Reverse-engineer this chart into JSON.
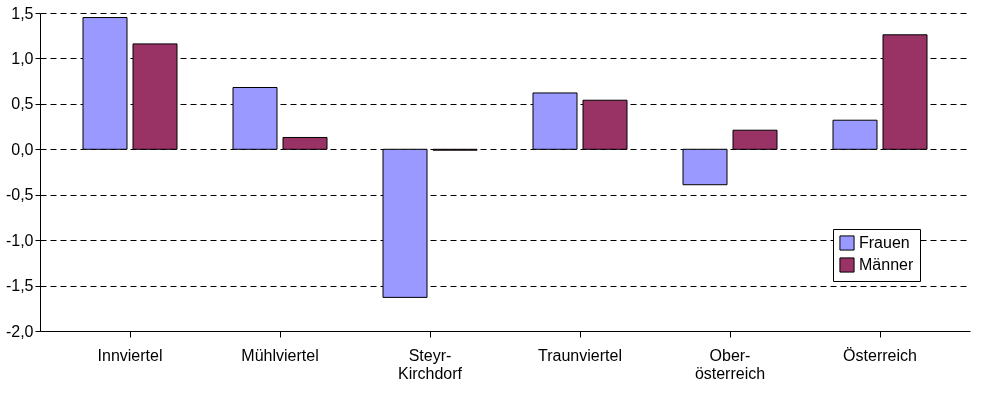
{
  "chart_data": {
    "type": "bar",
    "categories": [
      "Innviertel",
      "Mühlviertel",
      "Steyr-\nKirchdorf",
      "Traunviertel",
      "Ober-\nösterreich",
      "Österreich"
    ],
    "series": [
      {
        "name": "Frauen",
        "color": "#9999ff",
        "values": [
          1.45,
          0.68,
          -1.63,
          0.62,
          -0.39,
          0.32
        ]
      },
      {
        "name": "Männer",
        "color": "#993366",
        "values": [
          1.16,
          0.13,
          -0.01,
          0.54,
          0.21,
          1.26
        ]
      }
    ],
    "ylim": [
      -2.0,
      1.5
    ],
    "yticks": [
      {
        "value": -2.0,
        "label": "-2,0"
      },
      {
        "value": -1.5,
        "label": "-1,5"
      },
      {
        "value": -1.0,
        "label": "-1,0"
      },
      {
        "value": -0.5,
        "label": "-0,5"
      },
      {
        "value": 0.0,
        "label": "0,0"
      },
      {
        "value": 0.5,
        "label": "0,5"
      },
      {
        "value": 1.0,
        "label": "1,0"
      },
      {
        "value": 1.5,
        "label": "1,5"
      }
    ],
    "grid": "y",
    "legend": "bottom right"
  }
}
